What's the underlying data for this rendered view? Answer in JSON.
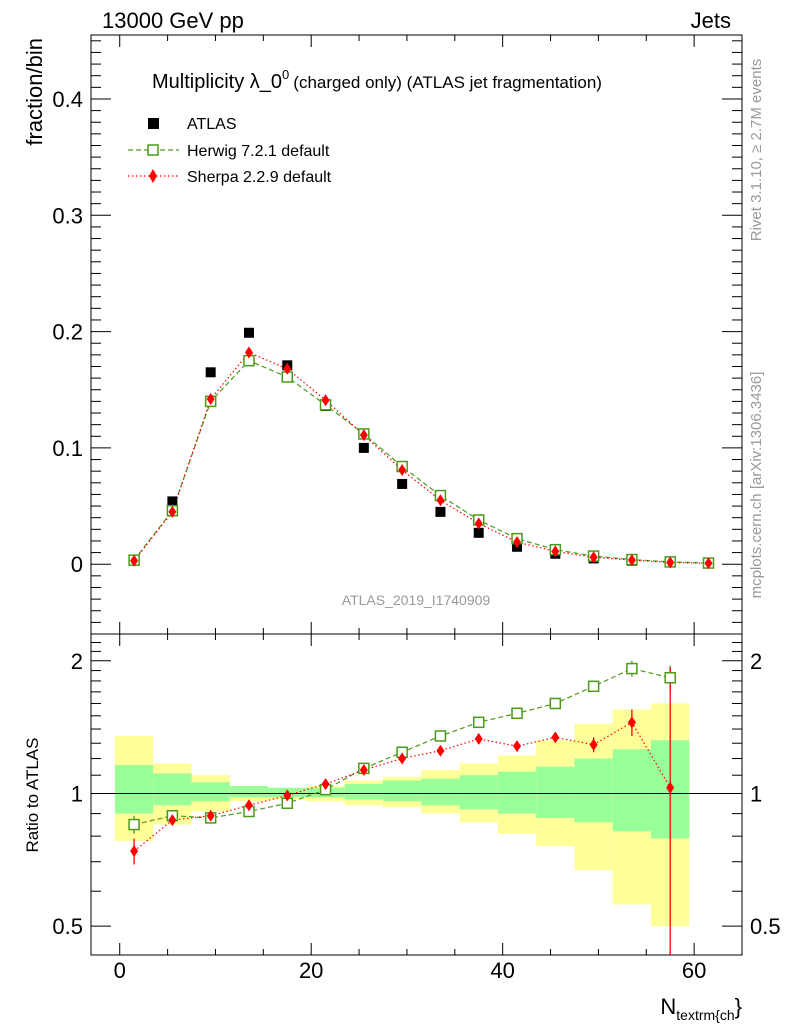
{
  "header": {
    "left": "13000 GeV pp",
    "right": "Jets"
  },
  "plot_title": {
    "main": "Multiplicity λ_0",
    "superscript": "0",
    "suffix": "(charged only) (ATLAS jet fragmentation)"
  },
  "side_labels": {
    "rivet": "Rivet 3.1.10, ≥ 2.7M events",
    "mcplots": "mcplots.cern.ch [arXiv:1306.3436]"
  },
  "analysis_label": "ATLAS_2019_I1740909",
  "colors": {
    "data": "#000000",
    "herwig": "#4c9a19",
    "sherpa": "#ff0000",
    "band_inner": "#99ff99",
    "band_outer": "#ffff99"
  },
  "chart_data": [
    {
      "type": "scatter",
      "panel": "main",
      "ylabel": "fraction/bin",
      "xlim": [
        -3,
        65
      ],
      "ylim": [
        -0.06,
        0.455
      ],
      "yticks": [
        0,
        0.1,
        0.2,
        0.3,
        0.4
      ],
      "ytick_labels": [
        "0",
        "0.1",
        "0.2",
        "0.3",
        "0.4"
      ],
      "legend_position": "top-left",
      "x": [
        1.5,
        5.5,
        9.5,
        13.5,
        17.5,
        21.5,
        25.5,
        29.5,
        33.5,
        37.5,
        41.5,
        45.5,
        49.5,
        53.5,
        57.5,
        61.5
      ],
      "series": [
        {
          "name": "ATLAS",
          "marker": "square-filled",
          "values": [
            0.004,
            0.054,
            0.165,
            0.199,
            0.171,
            0.136,
            0.1,
            0.069,
            0.045,
            0.027,
            0.015,
            0.009,
            0.005,
            0.003,
            0.0015,
            0.001
          ]
        },
        {
          "name": "Herwig 7.2.1 default",
          "marker": "square-open",
          "values": [
            0.0035,
            0.046,
            0.14,
            0.175,
            0.161,
            0.137,
            0.112,
            0.084,
            0.059,
            0.038,
            0.022,
            0.0125,
            0.007,
            0.004,
            0.002,
            0.001
          ]
        },
        {
          "name": "Sherpa 2.2.9 default",
          "marker": "diamond-filled",
          "values": [
            0.003,
            0.045,
            0.142,
            0.182,
            0.168,
            0.141,
            0.111,
            0.081,
            0.055,
            0.035,
            0.019,
            0.011,
            0.006,
            0.0035,
            0.0015,
            0.0008
          ]
        }
      ]
    },
    {
      "type": "line",
      "panel": "ratio",
      "ylabel": "Ratio to ATLAS",
      "xlabel": "N",
      "xlabel_sub": "textrm{ch",
      "xlabel_suffix": "}",
      "xlim": [
        -3,
        65
      ],
      "ylim": [
        0.43,
        2.3
      ],
      "log_scale_y": true,
      "xticks": [
        0,
        20,
        40,
        60
      ],
      "xtick_labels": [
        "0",
        "20",
        "40",
        "60"
      ],
      "yticks": [
        0.5,
        1,
        2
      ],
      "ytick_labels": [
        "0.5",
        "1",
        "2"
      ],
      "bin_edges": [
        -0.5,
        3.5,
        7.5,
        11.5,
        15.5,
        19.5,
        23.5,
        27.5,
        31.5,
        35.5,
        39.5,
        43.5,
        47.5,
        51.5,
        55.5,
        59.5
      ],
      "band_inner": {
        "lo": [
          0.9,
          0.94,
          0.96,
          0.98,
          0.98,
          0.98,
          0.97,
          0.96,
          0.94,
          0.92,
          0.9,
          0.88,
          0.86,
          0.82,
          0.79
        ],
        "hi": [
          1.16,
          1.11,
          1.06,
          1.04,
          1.03,
          1.03,
          1.05,
          1.07,
          1.08,
          1.1,
          1.12,
          1.15,
          1.2,
          1.26,
          1.32
        ]
      },
      "band_outer": {
        "lo": [
          0.78,
          0.85,
          0.91,
          0.96,
          0.97,
          0.96,
          0.94,
          0.93,
          0.9,
          0.86,
          0.81,
          0.76,
          0.67,
          0.56,
          0.5
        ]
      },
      "band_outer_hi": [
        1.35,
        1.17,
        1.1,
        1.04,
        1.03,
        1.04,
        1.07,
        1.09,
        1.13,
        1.17,
        1.22,
        1.32,
        1.44,
        1.55,
        1.6
      ],
      "x": [
        1.5,
        5.5,
        9.5,
        13.5,
        17.5,
        21.5,
        25.5,
        29.5,
        33.5,
        37.5,
        41.5,
        45.5,
        49.5,
        53.5,
        57.5
      ],
      "series": [
        {
          "name": "Herwig 7.2.1 default",
          "values": [
            0.85,
            0.89,
            0.88,
            0.91,
            0.95,
            1.02,
            1.14,
            1.24,
            1.35,
            1.45,
            1.52,
            1.6,
            1.75,
            1.92,
            1.83
          ],
          "err": [
            0.04,
            0.01,
            0.01,
            0.01,
            0.01,
            0.01,
            0.01,
            0.01,
            0.01,
            0.02,
            0.02,
            0.02,
            0.05,
            0.08,
            0.12
          ]
        },
        {
          "name": "Sherpa 2.2.9 default",
          "values": [
            0.74,
            0.87,
            0.89,
            0.94,
            0.99,
            1.05,
            1.13,
            1.2,
            1.25,
            1.33,
            1.28,
            1.34,
            1.29,
            1.45,
            1.03
          ],
          "err": [
            0.05,
            0.01,
            0.01,
            0.01,
            0.01,
            0.01,
            0.01,
            0.01,
            0.01,
            0.02,
            0.02,
            0.03,
            0.05,
            0.1,
            0.9
          ]
        }
      ]
    }
  ]
}
